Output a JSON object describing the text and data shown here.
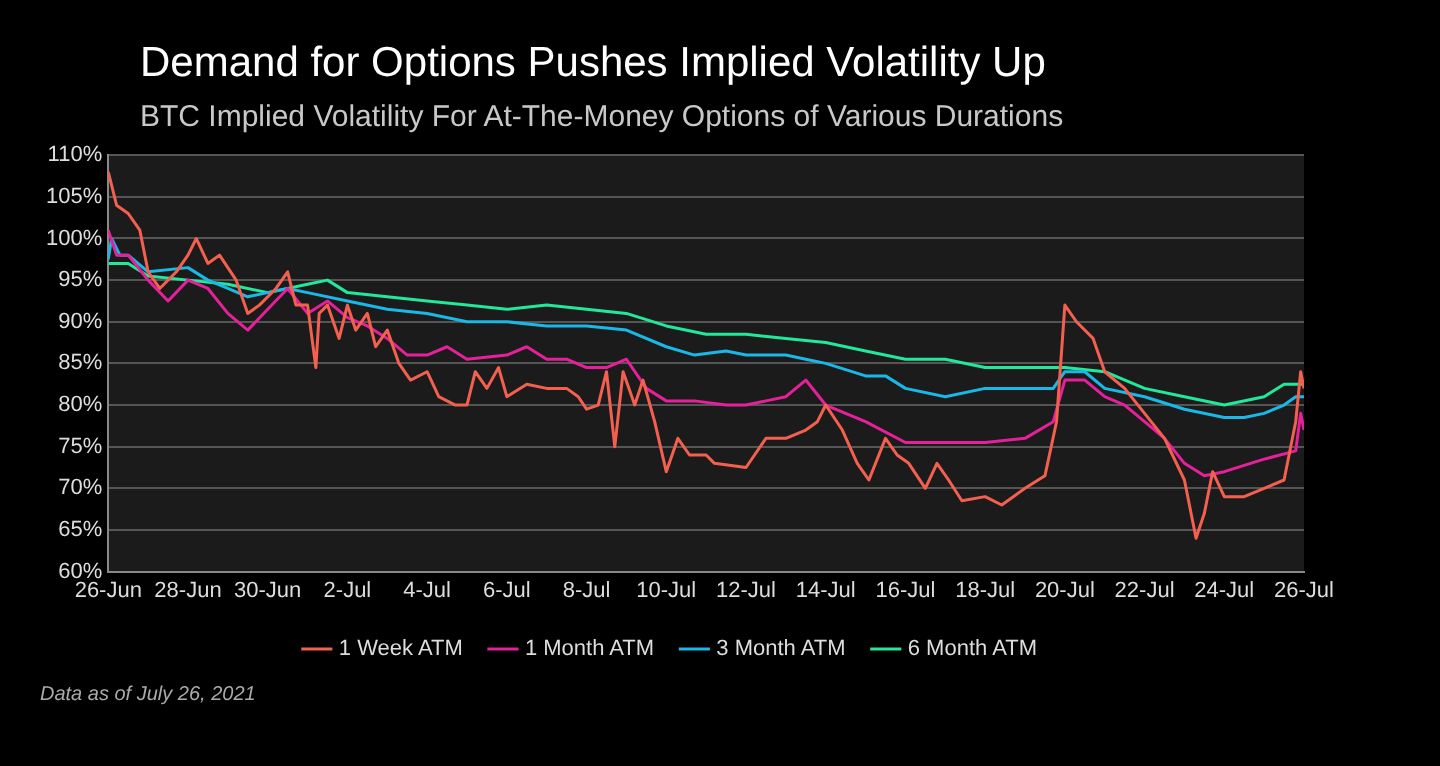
{
  "chart_data": {
    "type": "line",
    "title": "Demand for Options Pushes Implied Volatility Up",
    "subtitle": "BTC Implied Volatility For At-The-Money Options of Various Durations",
    "xlim": [
      "2021-06-26",
      "2021-07-26"
    ],
    "xticks": [
      {
        "value": "2021-06-26",
        "label": "26-Jun"
      },
      {
        "value": "2021-06-28",
        "label": "28-Jun"
      },
      {
        "value": "2021-06-30",
        "label": "30-Jun"
      },
      {
        "value": "2021-07-02",
        "label": "2-Jul"
      },
      {
        "value": "2021-07-04",
        "label": "4-Jul"
      },
      {
        "value": "2021-07-06",
        "label": "6-Jul"
      },
      {
        "value": "2021-07-08",
        "label": "8-Jul"
      },
      {
        "value": "2021-07-10",
        "label": "10-Jul"
      },
      {
        "value": "2021-07-12",
        "label": "12-Jul"
      },
      {
        "value": "2021-07-14",
        "label": "14-Jul"
      },
      {
        "value": "2021-07-16",
        "label": "16-Jul"
      },
      {
        "value": "2021-07-18",
        "label": "18-Jul"
      },
      {
        "value": "2021-07-20",
        "label": "20-Jul"
      },
      {
        "value": "2021-07-22",
        "label": "22-Jul"
      },
      {
        "value": "2021-07-24",
        "label": "24-Jul"
      },
      {
        "value": "2021-07-26",
        "label": "26-Jul"
      }
    ],
    "ylim": [
      60,
      110
    ],
    "yticks": [
      {
        "value": 60,
        "label": "60%"
      },
      {
        "value": 65,
        "label": "65%"
      },
      {
        "value": 70,
        "label": "70%"
      },
      {
        "value": 75,
        "label": "75%"
      },
      {
        "value": 80,
        "label": "80%"
      },
      {
        "value": 85,
        "label": "85%"
      },
      {
        "value": 90,
        "label": "90%"
      },
      {
        "value": 95,
        "label": "95%"
      },
      {
        "value": 100,
        "label": "100%"
      },
      {
        "value": 105,
        "label": "105%"
      },
      {
        "value": 110,
        "label": "110%"
      }
    ],
    "grid": "y",
    "legend": "bottom",
    "marker": "none",
    "line_style": "solid",
    "annotations": [
      "Data as of July 26, 2021"
    ],
    "series": [
      {
        "name": "1 Week ATM",
        "color": "#f4604f",
        "x": [
          "2021-06-26T00:00",
          "2021-06-26T05:00",
          "2021-06-26T12:00",
          "2021-06-26T19:00",
          "2021-06-27T00:00",
          "2021-06-27T07:00",
          "2021-06-27T17:00",
          "2021-06-28T00:00",
          "2021-06-28T05:00",
          "2021-06-28T12:00",
          "2021-06-28T19:00",
          "2021-06-29T05:00",
          "2021-06-29T12:00",
          "2021-06-29T19:00",
          "2021-06-30T05:00",
          "2021-06-30T12:00",
          "2021-06-30T17:00",
          "2021-07-01T00:00",
          "2021-07-01T05:00",
          "2021-07-01T07:00",
          "2021-07-01T12:00",
          "2021-07-01T19:00",
          "2021-07-02T00:00",
          "2021-07-02T05:00",
          "2021-07-02T12:00",
          "2021-07-02T17:00",
          "2021-07-03T00:00",
          "2021-07-03T07:00",
          "2021-07-03T14:00",
          "2021-07-04T00:00",
          "2021-07-04T07:00",
          "2021-07-04T17:00",
          "2021-07-05T00:00",
          "2021-07-05T05:00",
          "2021-07-05T12:00",
          "2021-07-05T19:00",
          "2021-07-06T00:00",
          "2021-07-06T12:00",
          "2021-07-07T00:00",
          "2021-07-07T12:00",
          "2021-07-07T19:00",
          "2021-07-08T00:00",
          "2021-07-08T07:00",
          "2021-07-08T12:00",
          "2021-07-08T17:00",
          "2021-07-08T22:00",
          "2021-07-09T05:00",
          "2021-07-09T10:00",
          "2021-07-09T17:00",
          "2021-07-10T00:00",
          "2021-07-10T07:00",
          "2021-07-10T14:00",
          "2021-07-11T00:00",
          "2021-07-11T05:00",
          "2021-07-12T00:00",
          "2021-07-12T12:00",
          "2021-07-13T00:00",
          "2021-07-13T12:00",
          "2021-07-13T19:00",
          "2021-07-14T00:00",
          "2021-07-14T10:00",
          "2021-07-14T19:00",
          "2021-07-15T02:00",
          "2021-07-15T12:00",
          "2021-07-15T19:00",
          "2021-07-16T02:00",
          "2021-07-16T12:00",
          "2021-07-16T19:00",
          "2021-07-17T02:00",
          "2021-07-17T10:00",
          "2021-07-18T00:00",
          "2021-07-18T10:00",
          "2021-07-19T00:00",
          "2021-07-19T12:00",
          "2021-07-19T19:00",
          "2021-07-20T00:00",
          "2021-07-20T07:00",
          "2021-07-20T17:00",
          "2021-07-21T00:00",
          "2021-07-21T12:00",
          "2021-07-22T00:00",
          "2021-07-22T12:00",
          "2021-07-23T00:00",
          "2021-07-23T07:00",
          "2021-07-23T12:00",
          "2021-07-23T17:00",
          "2021-07-24T00:00",
          "2021-07-24T12:00",
          "2021-07-25T00:00",
          "2021-07-25T12:00",
          "2021-07-25T19:00",
          "2021-07-25T22:00",
          "2021-07-26T00:00"
        ],
        "values": [
          108,
          104,
          103,
          101,
          96,
          94,
          96,
          98,
          100,
          97,
          98,
          95,
          91,
          92,
          94,
          96,
          92,
          92,
          84.5,
          91,
          92,
          88,
          92,
          89,
          91,
          87,
          89,
          85,
          83,
          84,
          81,
          80,
          80,
          84,
          82,
          84.5,
          81,
          82.5,
          82,
          82,
          81,
          79.5,
          80,
          84,
          75,
          84,
          80,
          83,
          78,
          72,
          76,
          74,
          74,
          73,
          72.5,
          76,
          76,
          77,
          78,
          80,
          77,
          73,
          71,
          76,
          74,
          73,
          70,
          73,
          71,
          68.5,
          69,
          68,
          70,
          71.5,
          78,
          92,
          90,
          88,
          84,
          82,
          79,
          76,
          71,
          64,
          67,
          72,
          69,
          69,
          70,
          71,
          78,
          84,
          82
        ]
      },
      {
        "name": "1 Month ATM",
        "color": "#e5209a",
        "x": [
          "2021-06-26T00:00",
          "2021-06-26T05:00",
          "2021-06-26T12:00",
          "2021-06-27T00:00",
          "2021-06-27T12:00",
          "2021-06-28T00:00",
          "2021-06-28T12:00",
          "2021-06-29T00:00",
          "2021-06-29T12:00",
          "2021-06-30T00:00",
          "2021-06-30T12:00",
          "2021-07-01T00:00",
          "2021-07-01T12:00",
          "2021-07-02T00:00",
          "2021-07-02T12:00",
          "2021-07-03T00:00",
          "2021-07-03T12:00",
          "2021-07-04T00:00",
          "2021-07-04T12:00",
          "2021-07-05T00:00",
          "2021-07-06T00:00",
          "2021-07-06T12:00",
          "2021-07-07T00:00",
          "2021-07-07T12:00",
          "2021-07-08T00:00",
          "2021-07-08T12:00",
          "2021-07-09T00:00",
          "2021-07-09T12:00",
          "2021-07-10T00:00",
          "2021-07-10T17:00",
          "2021-07-11T12:00",
          "2021-07-12T00:00",
          "2021-07-12T12:00",
          "2021-07-13T00:00",
          "2021-07-13T12:00",
          "2021-07-14T00:00",
          "2021-07-14T12:00",
          "2021-07-15T00:00",
          "2021-07-16T00:00",
          "2021-07-17T00:00",
          "2021-07-18T00:00",
          "2021-07-19T00:00",
          "2021-07-19T17:00",
          "2021-07-20T00:00",
          "2021-07-20T12:00",
          "2021-07-21T00:00",
          "2021-07-21T12:00",
          "2021-07-22T00:00",
          "2021-07-22T12:00",
          "2021-07-23T00:00",
          "2021-07-23T12:00",
          "2021-07-24T00:00",
          "2021-07-25T00:00",
          "2021-07-25T19:00",
          "2021-07-25T22:00",
          "2021-07-26T00:00"
        ],
        "values": [
          101,
          98,
          98,
          95,
          92.5,
          95,
          94,
          91,
          89,
          91.5,
          94,
          91,
          92.5,
          90.5,
          89.5,
          88,
          86,
          86,
          87,
          85.5,
          86,
          87,
          85.5,
          85.5,
          84.5,
          84.5,
          85.5,
          82,
          80.5,
          80.5,
          80,
          80,
          80.5,
          81,
          83,
          80,
          79,
          78,
          75.5,
          75.5,
          75.5,
          76,
          78,
          83,
          83,
          81,
          80,
          78,
          76,
          73,
          71.5,
          72,
          73.5,
          74.5,
          79,
          77
        ]
      },
      {
        "name": "3 Month ATM",
        "color": "#1ab8e6",
        "x": [
          "2021-06-26T00:00",
          "2021-06-26T02:00",
          "2021-06-26T07:00",
          "2021-06-26T12:00",
          "2021-06-27T00:00",
          "2021-06-28T00:00",
          "2021-06-28T12:00",
          "2021-06-29T00:00",
          "2021-06-29T12:00",
          "2021-06-30T00:00",
          "2021-06-30T12:00",
          "2021-07-01T00:00",
          "2021-07-02T00:00",
          "2021-07-03T00:00",
          "2021-07-04T00:00",
          "2021-07-05T00:00",
          "2021-07-06T00:00",
          "2021-07-07T00:00",
          "2021-07-08T00:00",
          "2021-07-09T00:00",
          "2021-07-10T00:00",
          "2021-07-10T17:00",
          "2021-07-11T12:00",
          "2021-07-12T00:00",
          "2021-07-13T00:00",
          "2021-07-13T12:00",
          "2021-07-14T00:00",
          "2021-07-15T00:00",
          "2021-07-15T12:00",
          "2021-07-16T00:00",
          "2021-07-17T00:00",
          "2021-07-18T00:00",
          "2021-07-19T00:00",
          "2021-07-19T17:00",
          "2021-07-20T00:00",
          "2021-07-20T12:00",
          "2021-07-21T00:00",
          "2021-07-22T00:00",
          "2021-07-23T00:00",
          "2021-07-24T00:00",
          "2021-07-24T12:00",
          "2021-07-25T00:00",
          "2021-07-25T12:00",
          "2021-07-25T19:00",
          "2021-07-26T00:00"
        ],
        "values": [
          97.5,
          100,
          98,
          98,
          96,
          96.5,
          95,
          94,
          93,
          93.5,
          94,
          93.5,
          92.5,
          91.5,
          91,
          90,
          90,
          89.5,
          89.5,
          89,
          87,
          86,
          86.5,
          86,
          86,
          85.5,
          85,
          83.5,
          83.5,
          82,
          81,
          82,
          82,
          82,
          84,
          84,
          82,
          81,
          79.5,
          78.5,
          78.5,
          79,
          80,
          81,
          81
        ]
      },
      {
        "name": "6 Month ATM",
        "color": "#22e89a",
        "x": [
          "2021-06-26T00:00",
          "2021-06-26T12:00",
          "2021-06-27T00:00",
          "2021-06-28T00:00",
          "2021-06-29T00:00",
          "2021-06-30T00:00",
          "2021-07-01T00:00",
          "2021-07-01T12:00",
          "2021-07-02T00:00",
          "2021-07-03T00:00",
          "2021-07-04T00:00",
          "2021-07-05T00:00",
          "2021-07-06T00:00",
          "2021-07-07T00:00",
          "2021-07-08T00:00",
          "2021-07-09T00:00",
          "2021-07-10T00:00",
          "2021-07-11T00:00",
          "2021-07-12T00:00",
          "2021-07-13T00:00",
          "2021-07-14T00:00",
          "2021-07-15T00:00",
          "2021-07-16T00:00",
          "2021-07-17T00:00",
          "2021-07-18T00:00",
          "2021-07-19T00:00",
          "2021-07-20T00:00",
          "2021-07-21T00:00",
          "2021-07-22T00:00",
          "2021-07-23T00:00",
          "2021-07-24T00:00",
          "2021-07-25T00:00",
          "2021-07-25T12:00",
          "2021-07-26T00:00"
        ],
        "values": [
          97,
          97,
          95.5,
          95,
          94.5,
          93.5,
          94.5,
          95,
          93.5,
          93,
          92.5,
          92,
          91.5,
          92,
          91.5,
          91,
          89.5,
          88.5,
          88.5,
          88,
          87.5,
          86.5,
          85.5,
          85.5,
          84.5,
          84.5,
          84.5,
          84,
          82,
          81,
          80,
          81,
          82.5,
          82.5
        ]
      }
    ]
  }
}
